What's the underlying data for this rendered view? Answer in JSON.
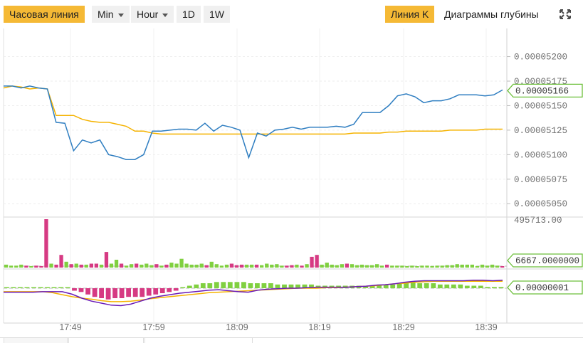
{
  "toolbar": {
    "hour_line": "Часовая линия",
    "min": "Min",
    "hour": "Hour",
    "d1": "1D",
    "w1": "1W",
    "k_line": "Линия K",
    "depth": "Диаграммы глубины",
    "fullscreen_icon": "expand-icon"
  },
  "colors": {
    "accent": "#f5b935",
    "price_line": "#2f7ec1",
    "ma_line": "#f5b300",
    "bar_up": "#80d040",
    "bar_down": "#d63a83",
    "macd_line": "#6a1bb8",
    "signal_line": "#f5b300",
    "tag_border": "#6cbf3a"
  },
  "chart_data": [
    {
      "type": "line",
      "panel": "price",
      "x_ticks": [
        "17:49",
        "17:59",
        "18:09",
        "18:19",
        "18:29",
        "18:39"
      ],
      "y_ticks": [
        "0.00005200",
        "0.00005175",
        "0.00005150",
        "0.00005125",
        "0.00005100",
        "0.00005075",
        "0.00005050"
      ],
      "ylim": [
        5.04e-05,
        5.22e-05
      ],
      "grid": true,
      "last_value_tag": "0.00005166",
      "series": [
        {
          "values": [
            5.17e-05,
            5.17e-05,
            5.168e-05,
            5.17e-05,
            5.168e-05,
            5.167e-05,
            5.133e-05,
            5.132e-05,
            5.104e-05,
            5.115e-05,
            5.112e-05,
            5.115e-05,
            5.1e-05,
            5.098e-05,
            5.095e-05,
            5.095e-05,
            5.1e-05,
            5.124e-05,
            5.124e-05,
            5.125e-05,
            5.126e-05,
            5.126e-05,
            5.125e-05,
            5.132e-05,
            5.124e-05,
            5.13e-05,
            5.128e-05,
            5.125e-05,
            5.097e-05,
            5.122e-05,
            5.119e-05,
            5.125e-05,
            5.126e-05,
            5.128e-05,
            5.126e-05,
            5.128e-05,
            5.128e-05,
            5.128e-05,
            5.129e-05,
            5.128e-05,
            5.131e-05,
            5.143e-05,
            5.143e-05,
            5.143e-05,
            5.15e-05,
            5.16e-05,
            5.162e-05,
            5.159e-05,
            5.153e-05,
            5.155e-05,
            5.155e-05,
            5.157e-05,
            5.161e-05,
            5.161e-05,
            5.161e-05,
            5.16e-05,
            5.161e-05,
            5.166e-05
          ]
        },
        {
          "values": [
            5.168e-05,
            5.17e-05,
            5.169e-05,
            5.167e-05,
            5.168e-05,
            5.167e-05,
            5.14e-05,
            5.14e-05,
            5.14e-05,
            5.136e-05,
            5.134e-05,
            5.133e-05,
            5.133e-05,
            5.131e-05,
            5.129e-05,
            5.124e-05,
            5.124e-05,
            5.122e-05,
            5.121e-05,
            5.121e-05,
            5.121e-05,
            5.121e-05,
            5.121e-05,
            5.121e-05,
            5.121e-05,
            5.121e-05,
            5.121e-05,
            5.121e-05,
            5.121e-05,
            5.121e-05,
            5.121e-05,
            5.121e-05,
            5.121e-05,
            5.121e-05,
            5.121e-05,
            5.121e-05,
            5.121e-05,
            5.121e-05,
            5.121e-05,
            5.121e-05,
            5.122e-05,
            5.122e-05,
            5.122e-05,
            5.122e-05,
            5.123e-05,
            5.123e-05,
            5.124e-05,
            5.124e-05,
            5.124e-05,
            5.124e-05,
            5.124e-05,
            5.125e-05,
            5.125e-05,
            5.125e-05,
            5.125e-05,
            5.126e-05,
            5.126e-05,
            5.126e-05
          ]
        }
      ]
    },
    {
      "type": "bar",
      "panel": "volume",
      "y_ticks": [
        "495713.00"
      ],
      "ylim": [
        0,
        495713
      ],
      "last_value_tag": "6667.0000000",
      "values": [
        30000,
        20000,
        20000,
        30000,
        20000,
        15000,
        20000,
        15000,
        495713,
        40000,
        30000,
        130000,
        60000,
        35000,
        40000,
        30000,
        30000,
        40000,
        40000,
        30000,
        160000,
        40000,
        80000,
        40000,
        20000,
        35000,
        40000,
        30000,
        40000,
        25000,
        35000,
        20000,
        30000,
        50000,
        40000,
        90000,
        40000,
        30000,
        30000,
        40000,
        25000,
        60000,
        35000,
        20000,
        30000,
        40000,
        25000,
        30000,
        30000,
        30000,
        30000,
        25000,
        40000,
        30000,
        35000,
        20000,
        20000,
        25000,
        30000,
        20000,
        35000,
        110000,
        130000,
        30000,
        50000,
        30000,
        25000,
        35000,
        40000,
        35000,
        25000,
        30000,
        25000,
        25000,
        35000,
        20000,
        30000,
        20000,
        20000,
        20000,
        15000,
        20000,
        10000,
        20000,
        20000,
        15000,
        20000,
        20000,
        25000,
        25000,
        35000,
        30000,
        30000,
        30000,
        15000,
        30000,
        20000,
        30000,
        20000,
        6667
      ],
      "direction": [
        "up",
        "up",
        "up",
        "up",
        "down",
        "up",
        "down",
        "down",
        "down",
        "up",
        "down",
        "down",
        "up",
        "down",
        "up",
        "down",
        "up",
        "down",
        "down",
        "up",
        "down",
        "up",
        "up",
        "down",
        "up",
        "up",
        "down",
        "up",
        "up",
        "up",
        "down",
        "up",
        "down",
        "up",
        "up",
        "up",
        "up",
        "up",
        "up",
        "up",
        "down",
        "up",
        "up",
        "up",
        "up",
        "down",
        "down",
        "down",
        "up",
        "up",
        "down",
        "up",
        "up",
        "up",
        "up",
        "up",
        "down",
        "down",
        "up",
        "down",
        "up",
        "down",
        "down",
        "up",
        "up",
        "up",
        "up",
        "up",
        "down",
        "up",
        "up",
        "up",
        "up",
        "up",
        "up",
        "up",
        "down",
        "up",
        "up",
        "up",
        "up",
        "up",
        "up",
        "up",
        "up",
        "up",
        "up",
        "up",
        "up",
        "up",
        "up",
        "up",
        "up",
        "up",
        "up",
        "up",
        "up",
        "up",
        "up",
        "down"
      ]
    },
    {
      "type": "bar",
      "panel": "macd",
      "last_value_tag": "0.00000001",
      "histogram": [
        0,
        0,
        0,
        0,
        0,
        0,
        0,
        0,
        0,
        0,
        -0.1,
        -0.15,
        -0.25,
        -0.35,
        -0.4,
        -0.45,
        -0.4,
        -0.4,
        -0.35,
        -0.35,
        -0.35,
        -0.3,
        -0.25,
        -0.2,
        -0.15,
        -0.1,
        0,
        0.1,
        0.15,
        0.2,
        0.2,
        0.25,
        0.25,
        0.25,
        0.25,
        0.25,
        0.2,
        0.2,
        0.2,
        0.2,
        0.15,
        0.15,
        0.15,
        0.15,
        0.15,
        0.15,
        0.1,
        0.1,
        0.1,
        0.1,
        0.1,
        0.1,
        0.1,
        0.1,
        0.1,
        0.15,
        0.15,
        0.15,
        0.2,
        0.25,
        0.25,
        0.2,
        0.2,
        0.2,
        0.15,
        0.15,
        0.15,
        0.15,
        0.1,
        0.1,
        0.1,
        0.05,
        0.05,
        0.05
      ],
      "macd": [
        -0.4,
        -0.4,
        -0.4,
        -0.4,
        -0.35,
        -0.35,
        -0.35,
        -0.6,
        -1.0,
        -1.3,
        -1.5,
        -1.7,
        -1.75,
        -1.6,
        -1.3,
        -1.0,
        -0.8,
        -0.65,
        -0.5,
        -0.4,
        -0.3,
        -0.2,
        -0.15,
        -0.25,
        -0.35,
        -0.4,
        -0.2,
        -0.1,
        -0.05,
        0.0,
        0.0,
        0.05,
        0.1,
        0.1,
        0.1,
        0.1,
        0.15,
        0.2,
        0.3,
        0.35,
        0.45,
        0.6,
        0.7,
        0.75,
        0.75,
        0.75,
        0.75,
        0.75,
        0.8,
        0.8,
        0.75,
        0.8
      ],
      "signal": [
        -0.35,
        -0.35,
        -0.35,
        -0.35,
        -0.35,
        -0.45,
        -0.65,
        -0.85,
        -1.0,
        -1.1,
        -1.25,
        -1.35,
        -1.35,
        -1.3,
        -1.2,
        -1.05,
        -0.95,
        -0.85,
        -0.75,
        -0.65,
        -0.55,
        -0.45,
        -0.4,
        -0.35,
        -0.3,
        -0.25,
        -0.2,
        -0.15,
        -0.1,
        -0.05,
        0.0,
        0.0,
        0.0,
        0.05,
        0.05,
        0.1,
        0.15,
        0.2,
        0.25,
        0.35,
        0.45,
        0.5,
        0.6,
        0.65,
        0.7,
        0.7,
        0.7,
        0.7,
        0.7,
        0.7,
        0.7,
        0.7
      ]
    }
  ]
}
